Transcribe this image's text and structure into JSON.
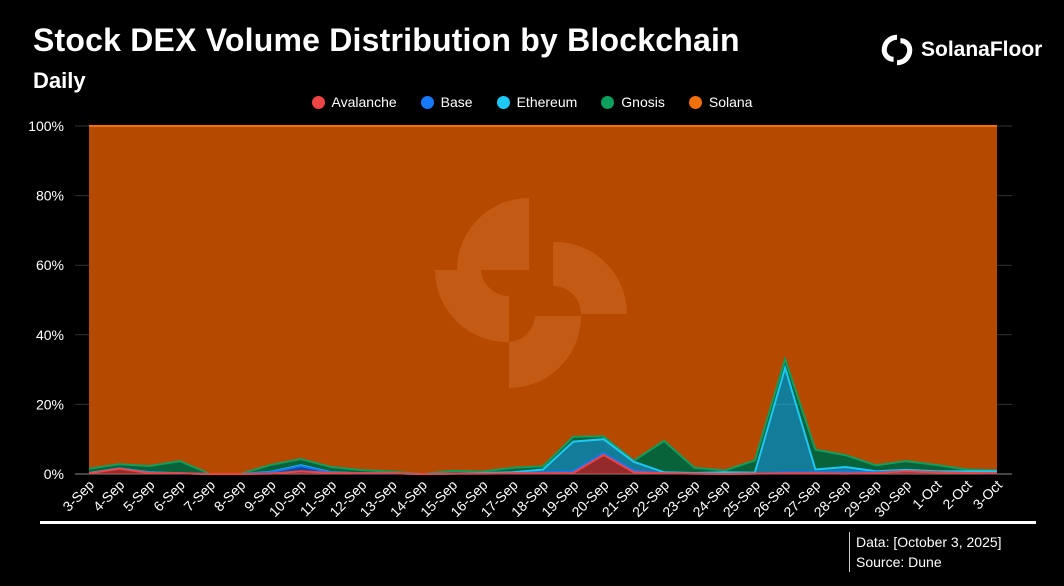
{
  "header": {
    "title": "Stock DEX Volume Distribution by Blockchain",
    "subtitle": "Daily",
    "brand": "SolanaFloor"
  },
  "footer": {
    "data_line": "Data: [October 3, 2025]",
    "source_line": "Source: Dune"
  },
  "colors": {
    "background": "#000000",
    "Avalanche": "#ef4444",
    "Base": "#1677ff",
    "Ethereum": "#1ec8f5",
    "Gnosis": "#0d9f5e",
    "Solana": "#f2700a",
    "solana_fill": "#b64900"
  },
  "chart_data": {
    "type": "area",
    "stacked": true,
    "normalized": true,
    "categories": [
      "3-Sep",
      "4-Sep",
      "5-Sep",
      "6-Sep",
      "7-Sep",
      "8-Sep",
      "9-Sep",
      "10-Sep",
      "11-Sep",
      "12-Sep",
      "13-Sep",
      "14-Sep",
      "15-Sep",
      "16-Sep",
      "17-Sep",
      "18-Sep",
      "19-Sep",
      "20-Sep",
      "21-Sep",
      "22-Sep",
      "23-Sep",
      "24-Sep",
      "25-Sep",
      "26-Sep",
      "27-Sep",
      "28-Sep",
      "29-Sep",
      "30-Sep",
      "1-Oct",
      "2-Oct",
      "3-Oct"
    ],
    "series": [
      {
        "name": "Avalanche",
        "values": [
          0.2,
          1.5,
          0.3,
          0.2,
          0,
          0,
          0.1,
          0.8,
          0.3,
          0.2,
          0.2,
          0,
          0.1,
          0.1,
          0.2,
          0.2,
          0.3,
          5.5,
          0.5,
          0.2,
          0.1,
          0,
          0.1,
          0.2,
          0.2,
          0.1,
          0.3,
          0.8,
          0.5,
          0.3,
          0.2
        ]
      },
      {
        "name": "Base",
        "values": [
          0,
          0,
          0.1,
          0,
          0,
          0,
          0.4,
          1.5,
          0.1,
          0,
          0,
          0,
          0,
          0,
          0,
          0.3,
          0.5,
          0.5,
          0.5,
          0,
          0,
          0,
          0,
          0.3,
          0.3,
          0.5,
          0.2,
          0,
          0,
          0,
          0
        ]
      },
      {
        "name": "Ethereum",
        "values": [
          0.1,
          0.1,
          0.1,
          0,
          0,
          0,
          0.1,
          0.2,
          0.1,
          0,
          0,
          0,
          0,
          0.2,
          0.3,
          0.8,
          8.5,
          4,
          2.5,
          0.3,
          0.2,
          0.5,
          0.3,
          30,
          0.8,
          1.4,
          0.3,
          0.4,
          0.3,
          0.5,
          0.6
        ]
      },
      {
        "name": "Gnosis",
        "values": [
          1.2,
          1.2,
          1.8,
          3.5,
          0,
          0,
          2,
          1.8,
          1.5,
          0.9,
          0.5,
          0,
          0.8,
          0.4,
          1.3,
          0.9,
          1.4,
          0.8,
          0.3,
          9,
          1.5,
          0.5,
          3.5,
          2.5,
          5.7,
          3.4,
          1.7,
          2.5,
          1.8,
          0.5,
          0.2
        ]
      },
      {
        "name": "Solana",
        "values": [
          98.5,
          97.2,
          97.7,
          96.3,
          100,
          100,
          97.4,
          95.7,
          98,
          98.9,
          99.3,
          100,
          99.1,
          99.3,
          98.2,
          97.8,
          89.3,
          89.2,
          96.2,
          90.5,
          98.2,
          99,
          96.1,
          67,
          93,
          94.6,
          97.5,
          96.3,
          97.4,
          98.7,
          99
        ]
      }
    ],
    "ylim": [
      0,
      100
    ],
    "yticks": [
      "0%",
      "20%",
      "40%",
      "60%",
      "80%",
      "100%"
    ],
    "grid": true,
    "legend": "top-center"
  }
}
